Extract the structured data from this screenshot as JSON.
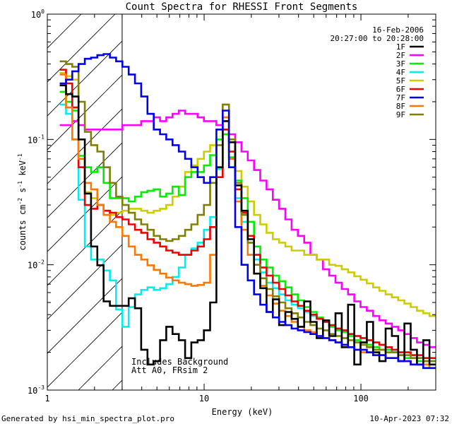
{
  "chart_data": {
    "type": "line",
    "title": "Count Spectra for RHESSI Front Segments",
    "xlabel": "Energy (keV)",
    "ylabel_parts": {
      "base": "counts cm",
      "exp1": "-2",
      "s": " s",
      "exp2": "-1",
      "kev": " keV",
      "exp3": "-1"
    },
    "x_scale": "log",
    "y_scale": "log",
    "xlim": [
      1,
      300
    ],
    "ylim": [
      0.001,
      1
    ],
    "x_ticks": [
      {
        "value": 1,
        "label": "1"
      },
      {
        "value": 10,
        "label": "10"
      },
      {
        "value": 100,
        "label": "100"
      }
    ],
    "y_ticks": [
      {
        "value": 0.001,
        "mantissa": "10",
        "exp": "-3"
      },
      {
        "value": 0.01,
        "mantissa": "10",
        "exp": "-2"
      },
      {
        "value": 0.1,
        "mantissa": "10",
        "exp": "-1"
      },
      {
        "value": 1,
        "mantissa": "10",
        "exp": "0"
      }
    ],
    "hatched_region_xmax": 3,
    "info_lines": [
      "16-Feb-2006",
      "20:27:00 to 20:28:00"
    ],
    "annotations": [
      "Includes Background",
      "Att A0, FRsim 2"
    ],
    "legend_position": "top-right",
    "series": [
      {
        "name": "1F",
        "color": "#000000",
        "values": [
          0.27,
          0.23,
          0.22,
          0.1,
          0.037,
          0.014,
          0.0099,
          0.0051,
          0.0047,
          0.0047,
          0.0047,
          0.0054,
          0.0045,
          0.0021,
          0.0016,
          0.0017,
          0.0025,
          0.0032,
          0.0028,
          0.0025,
          0.0018,
          0.0024,
          0.0025,
          0.003,
          0.005,
          0.06,
          0.14,
          0.095,
          0.043,
          0.027,
          0.016,
          0.0085,
          0.0065,
          0.0042,
          0.0053,
          0.0033,
          0.0042,
          0.0037,
          0.0032,
          0.0051,
          0.0035,
          0.0026,
          0.0036,
          0.0027,
          0.0041,
          0.0022,
          0.0048,
          0.0016,
          0.0024,
          0.0035,
          0.002,
          0.0017,
          0.0031,
          0.0027,
          0.0017,
          0.0034,
          0.0021,
          0.0016,
          0.0025,
          0.0016
        ]
      },
      {
        "name": "2F",
        "color": "#ff00ff",
        "values": [
          0.13,
          0.13,
          0.14,
          0.13,
          0.12,
          0.12,
          0.12,
          0.12,
          0.12,
          0.12,
          0.13,
          0.13,
          0.13,
          0.14,
          0.14,
          0.15,
          0.14,
          0.15,
          0.16,
          0.17,
          0.16,
          0.16,
          0.15,
          0.14,
          0.14,
          0.13,
          0.12,
          0.11,
          0.095,
          0.08,
          0.068,
          0.057,
          0.047,
          0.04,
          0.033,
          0.028,
          0.023,
          0.019,
          0.017,
          0.015,
          0.012,
          0.011,
          0.0092,
          0.0082,
          0.0072,
          0.0064,
          0.0058,
          0.0051,
          0.0046,
          0.0043,
          0.0039,
          0.0036,
          0.0034,
          0.0032,
          0.003,
          0.0028,
          0.0026,
          0.0024,
          0.0023,
          0.0022
        ]
      },
      {
        "name": "3F",
        "color": "#00ee00",
        "values": [
          0.24,
          0.2,
          0.17,
          0.074,
          0.06,
          0.055,
          0.06,
          0.045,
          0.034,
          0.034,
          0.034,
          0.032,
          0.035,
          0.038,
          0.039,
          0.04,
          0.035,
          0.037,
          0.042,
          0.036,
          0.05,
          0.055,
          0.055,
          0.062,
          0.075,
          0.1,
          0.11,
          0.072,
          0.047,
          0.034,
          0.022,
          0.014,
          0.011,
          0.0095,
          0.0082,
          0.0074,
          0.0066,
          0.0058,
          0.0052,
          0.0046,
          0.0042,
          0.0038,
          0.0035,
          0.0032,
          0.003,
          0.0029,
          0.0027,
          0.0025,
          0.0024,
          0.0023,
          0.0022,
          0.0021,
          0.0021,
          0.002,
          0.0019,
          0.0018,
          0.0018,
          0.0017,
          0.0017,
          0.0016
        ]
      },
      {
        "name": "4F",
        "color": "#00eeee",
        "values": [
          0.19,
          0.16,
          0.1,
          0.033,
          0.014,
          0.011,
          0.011,
          0.009,
          0.0075,
          0.0044,
          0.0032,
          0.0046,
          0.0058,
          0.0063,
          0.0066,
          0.0063,
          0.0065,
          0.007,
          0.008,
          0.0095,
          0.012,
          0.0135,
          0.015,
          0.019,
          0.024,
          0.058,
          0.12,
          0.07,
          0.034,
          0.022,
          0.015,
          0.011,
          0.0087,
          0.0072,
          0.0065,
          0.0058,
          0.0052,
          0.0048,
          0.0045,
          0.0042,
          0.0039,
          0.0037,
          0.0035,
          0.0033,
          0.0031,
          0.003,
          0.0028,
          0.0027,
          0.0026,
          0.0025,
          0.0024,
          0.0023,
          0.0022,
          0.0021,
          0.002,
          0.002,
          0.0019,
          0.0018,
          0.0018,
          0.0017
        ]
      },
      {
        "name": "5F",
        "color": "#cccc00",
        "values": [
          0.34,
          0.32,
          0.3,
          0.06,
          0.038,
          0.034,
          0.03,
          0.027,
          0.025,
          0.026,
          0.027,
          0.028,
          0.028,
          0.027,
          0.026,
          0.027,
          0.028,
          0.03,
          0.035,
          0.042,
          0.055,
          0.062,
          0.07,
          0.08,
          0.09,
          0.1,
          0.11,
          0.08,
          0.056,
          0.042,
          0.032,
          0.025,
          0.021,
          0.018,
          0.016,
          0.015,
          0.014,
          0.013,
          0.013,
          0.012,
          0.012,
          0.011,
          0.011,
          0.01,
          0.0098,
          0.0092,
          0.0087,
          0.0081,
          0.0076,
          0.0071,
          0.0066,
          0.0062,
          0.0058,
          0.0055,
          0.0052,
          0.0049,
          0.0046,
          0.0043,
          0.0041,
          0.0039
        ]
      },
      {
        "name": "6F",
        "color": "#ee0000",
        "values": [
          0.36,
          0.28,
          0.18,
          0.06,
          0.03,
          0.028,
          0.03,
          0.027,
          0.026,
          0.024,
          0.023,
          0.021,
          0.019,
          0.018,
          0.016,
          0.015,
          0.014,
          0.013,
          0.0125,
          0.012,
          0.012,
          0.013,
          0.014,
          0.016,
          0.02,
          0.05,
          0.12,
          0.08,
          0.04,
          0.026,
          0.017,
          0.012,
          0.0095,
          0.0082,
          0.0072,
          0.0064,
          0.0057,
          0.0051,
          0.0047,
          0.0043,
          0.004,
          0.0037,
          0.0035,
          0.0033,
          0.0031,
          0.003,
          0.0028,
          0.0027,
          0.0026,
          0.0025,
          0.0024,
          0.0023,
          0.0022,
          0.0021,
          0.002,
          0.002,
          0.0019,
          0.0019,
          0.0018,
          0.0018
        ]
      },
      {
        "name": "7F",
        "color": "#0000ee",
        "values": [
          0.28,
          0.3,
          0.35,
          0.4,
          0.44,
          0.45,
          0.47,
          0.48,
          0.45,
          0.42,
          0.38,
          0.33,
          0.28,
          0.22,
          0.16,
          0.12,
          0.11,
          0.1,
          0.09,
          0.08,
          0.07,
          0.06,
          0.05,
          0.045,
          0.05,
          0.12,
          0.17,
          0.06,
          0.02,
          0.01,
          0.0075,
          0.0058,
          0.0048,
          0.0042,
          0.0038,
          0.0035,
          0.0033,
          0.0031,
          0.003,
          0.0029,
          0.0028,
          0.0027,
          0.0026,
          0.0025,
          0.0024,
          0.0023,
          0.0022,
          0.0021,
          0.0021,
          0.002,
          0.0019,
          0.0019,
          0.0018,
          0.0018,
          0.0017,
          0.0017,
          0.0016,
          0.0016,
          0.0015,
          0.0015
        ]
      },
      {
        "name": "8F",
        "color": "#ff7700",
        "values": [
          0.33,
          0.18,
          0.1,
          0.07,
          0.045,
          0.04,
          0.03,
          0.025,
          0.022,
          0.02,
          0.017,
          0.014,
          0.012,
          0.011,
          0.0099,
          0.0091,
          0.0085,
          0.0079,
          0.0075,
          0.0072,
          0.007,
          0.0068,
          0.0069,
          0.0072,
          0.012,
          0.06,
          0.15,
          0.07,
          0.032,
          0.019,
          0.012,
          0.0085,
          0.0068,
          0.0057,
          0.0049,
          0.0043,
          0.0039,
          0.0035,
          0.0032,
          0.003,
          0.0029,
          0.0027,
          0.0026,
          0.0025,
          0.0024,
          0.0023,
          0.0022,
          0.0021,
          0.002,
          0.002,
          0.0019,
          0.0019,
          0.0018,
          0.0018,
          0.0017,
          0.0017,
          0.0016,
          0.0016,
          0.0016,
          0.0015
        ]
      },
      {
        "name": "9F",
        "color": "#808000",
        "values": [
          0.42,
          0.4,
          0.38,
          0.2,
          0.115,
          0.09,
          0.08,
          0.06,
          0.045,
          0.035,
          0.03,
          0.026,
          0.023,
          0.021,
          0.019,
          0.017,
          0.016,
          0.0155,
          0.016,
          0.017,
          0.019,
          0.021,
          0.025,
          0.03,
          0.045,
          0.09,
          0.19,
          0.1,
          0.045,
          0.025,
          0.015,
          0.01,
          0.0078,
          0.0064,
          0.0056,
          0.005,
          0.0045,
          0.0041,
          0.0038,
          0.0035,
          0.0033,
          0.0031,
          0.003,
          0.0028,
          0.0027,
          0.0026,
          0.0025,
          0.0024,
          0.0023,
          0.0022,
          0.0021,
          0.0021,
          0.002,
          0.002,
          0.0019,
          0.0019,
          0.0018,
          0.0018,
          0.0017,
          0.0017
        ]
      }
    ]
  },
  "footer": {
    "left": "Generated by hsi_min_spectra_plot.pro",
    "right": "10-Apr-2023 07:32"
  }
}
